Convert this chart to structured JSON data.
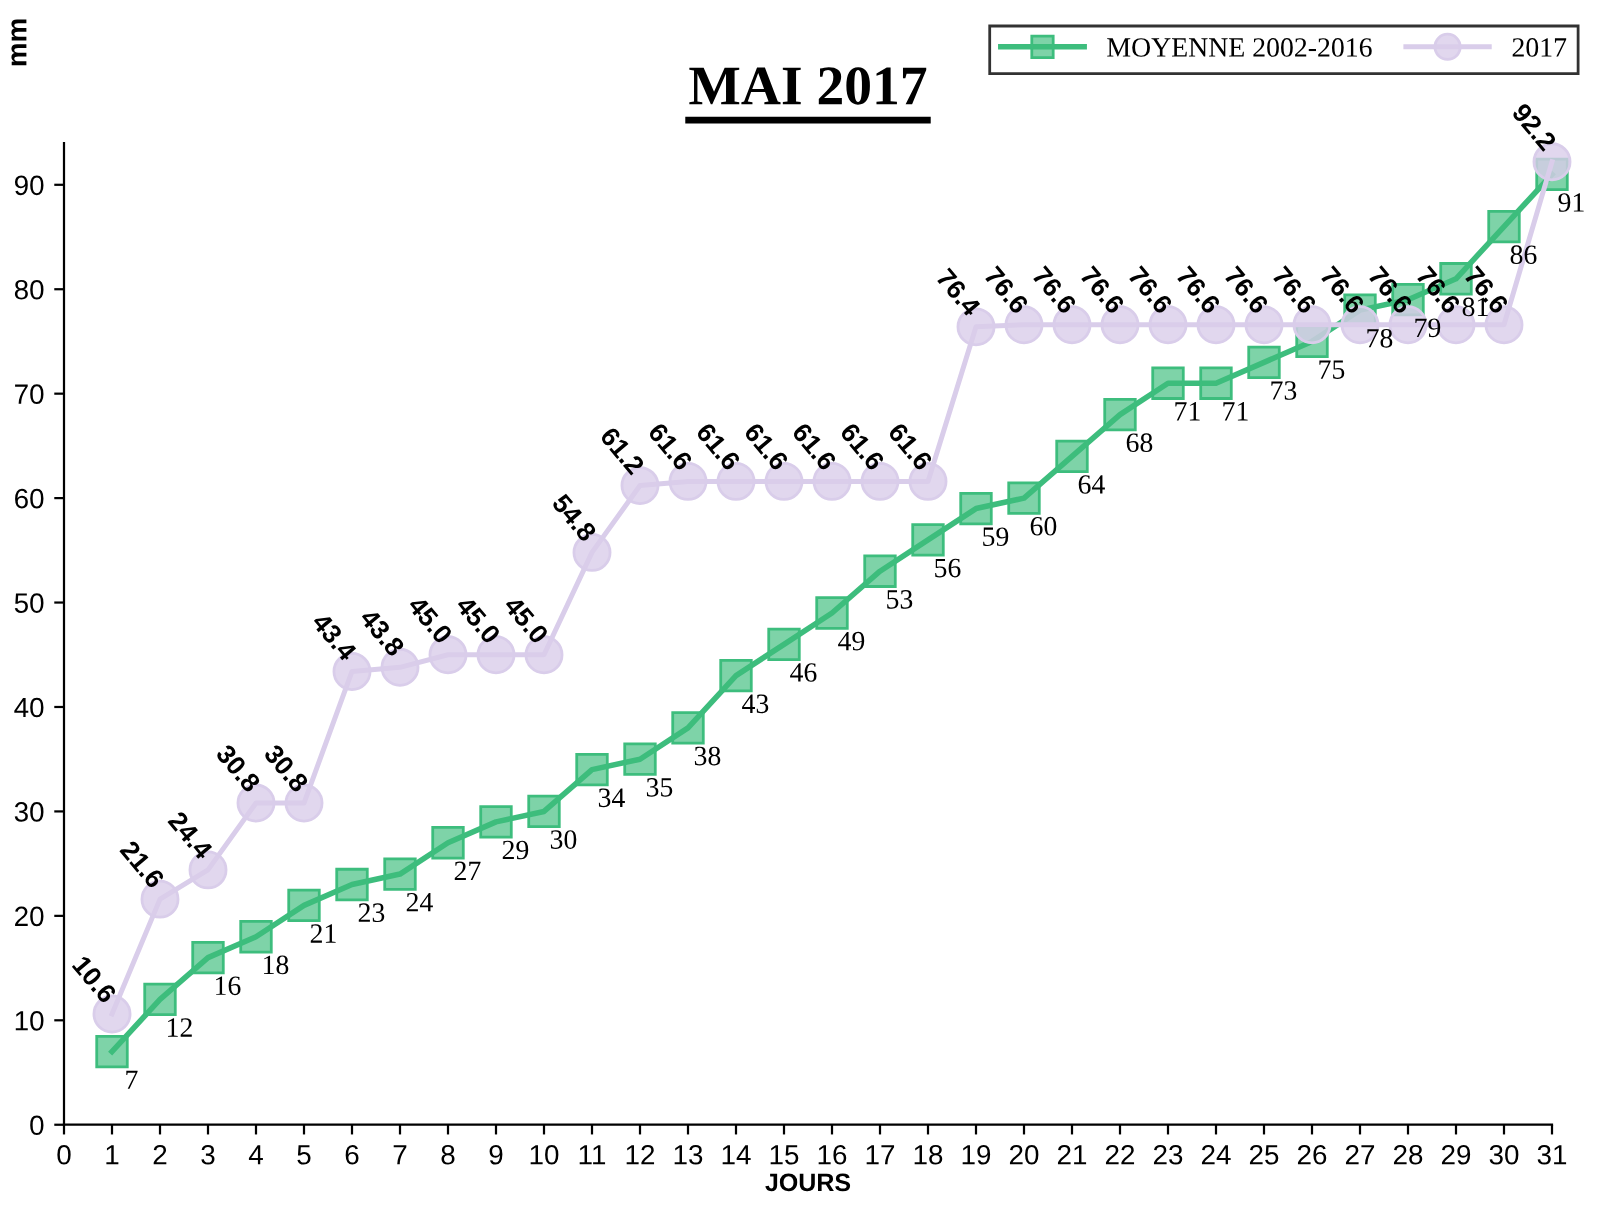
{
  "chart_data": {
    "type": "line",
    "title": "MAI 2017",
    "xlabel": "JOURS",
    "ylabel": "mm",
    "x": [
      1,
      2,
      3,
      4,
      5,
      6,
      7,
      8,
      9,
      10,
      11,
      12,
      13,
      14,
      15,
      16,
      17,
      18,
      19,
      20,
      21,
      22,
      23,
      24,
      25,
      26,
      27,
      28,
      29,
      30,
      31
    ],
    "xlim": [
      0,
      31
    ],
    "xticks": [
      0,
      1,
      2,
      3,
      4,
      5,
      6,
      7,
      8,
      9,
      10,
      11,
      12,
      13,
      14,
      15,
      16,
      17,
      18,
      19,
      20,
      21,
      22,
      23,
      24,
      25,
      26,
      27,
      28,
      29,
      30,
      31
    ],
    "ylim": [
      0,
      94
    ],
    "yticks": [
      0,
      10,
      20,
      30,
      40,
      50,
      60,
      70,
      80,
      90
    ],
    "grid": false,
    "legend": "top right",
    "series": [
      {
        "name": "MOYENNE 2002-2016",
        "color": "#3dbd7d",
        "marker": "square",
        "values": [
          7,
          12,
          16,
          18,
          21,
          23,
          24,
          27,
          29,
          30,
          34,
          35,
          38,
          43,
          46,
          49,
          53,
          56,
          59,
          60,
          64,
          68,
          71,
          71,
          73,
          75,
          78,
          79,
          81,
          86,
          91
        ],
        "value_labels": [
          "7",
          "12",
          "16",
          "18",
          "21",
          "23",
          "24",
          "27",
          "29",
          "30",
          "34",
          "35",
          "38",
          "43",
          "46",
          "49",
          "53",
          "56",
          "59",
          "60",
          "64",
          "68",
          "71",
          "71",
          "73",
          "75",
          "78",
          "79",
          "81",
          "86",
          "91"
        ]
      },
      {
        "name": "2017",
        "color": "#d9cdea",
        "marker": "circle",
        "values": [
          10.6,
          21.6,
          24.4,
          30.8,
          30.8,
          43.4,
          43.8,
          45.0,
          45.0,
          45.0,
          54.8,
          61.2,
          61.6,
          61.6,
          61.6,
          61.6,
          61.6,
          61.6,
          76.4,
          76.6,
          76.6,
          76.6,
          76.6,
          76.6,
          76.6,
          76.6,
          76.6,
          76.6,
          76.6,
          76.6,
          92.2
        ],
        "value_labels": [
          "10.6",
          "21.6",
          "24.4",
          "30.8",
          "30.8",
          "43.4",
          "43.8",
          "45.0",
          "45.0",
          "45.0",
          "54.8",
          "61.2",
          "61.6",
          "61.6",
          "61.6",
          "61.6",
          "61.6",
          "61.6",
          "76.4",
          "76.6",
          "76.6",
          "76.6",
          "76.6",
          "76.6",
          "76.6",
          "76.6",
          "76.6",
          "76.6",
          "76.6",
          "76.6",
          "92.2"
        ]
      }
    ]
  }
}
